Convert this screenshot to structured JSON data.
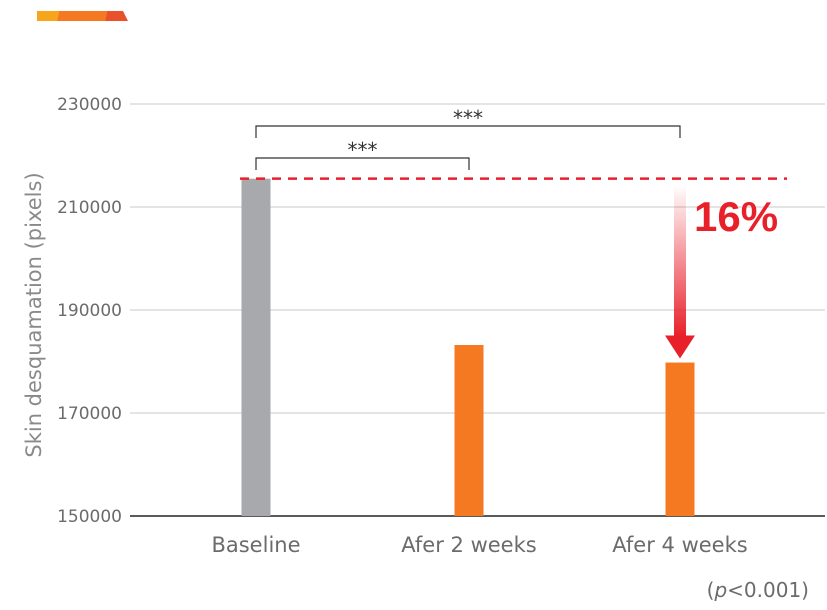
{
  "chart_data": {
    "type": "bar",
    "categories": [
      "Baseline",
      "Afer 2 weeks",
      "Afer 4 weeks"
    ],
    "values": [
      215500,
      183200,
      179800
    ],
    "bar_colors": [
      "#a7a9ac",
      "#f47920",
      "#f47920"
    ],
    "ylabel": "Skin desquamation (pixels)",
    "ylim": [
      150000,
      230000
    ],
    "yticks": [
      "230000",
      "210000",
      "190000",
      "170000",
      "150000"
    ],
    "ytick_values": [
      230000,
      210000,
      190000,
      170000,
      150000
    ],
    "grid": true,
    "reference_line": {
      "value": 215500,
      "color": "#e8202a"
    },
    "annotations": {
      "significance": [
        {
          "from": 0,
          "to": 1,
          "label": "***"
        },
        {
          "from": 0,
          "to": 2,
          "label": "***"
        }
      ],
      "reduction_label": "16%",
      "p_value": {
        "prefix": "(",
        "italic": "p",
        "rest": "<0.001)"
      }
    }
  },
  "decor": {
    "colors": [
      "#f9a51a",
      "#f47920",
      "#e8512a"
    ]
  }
}
